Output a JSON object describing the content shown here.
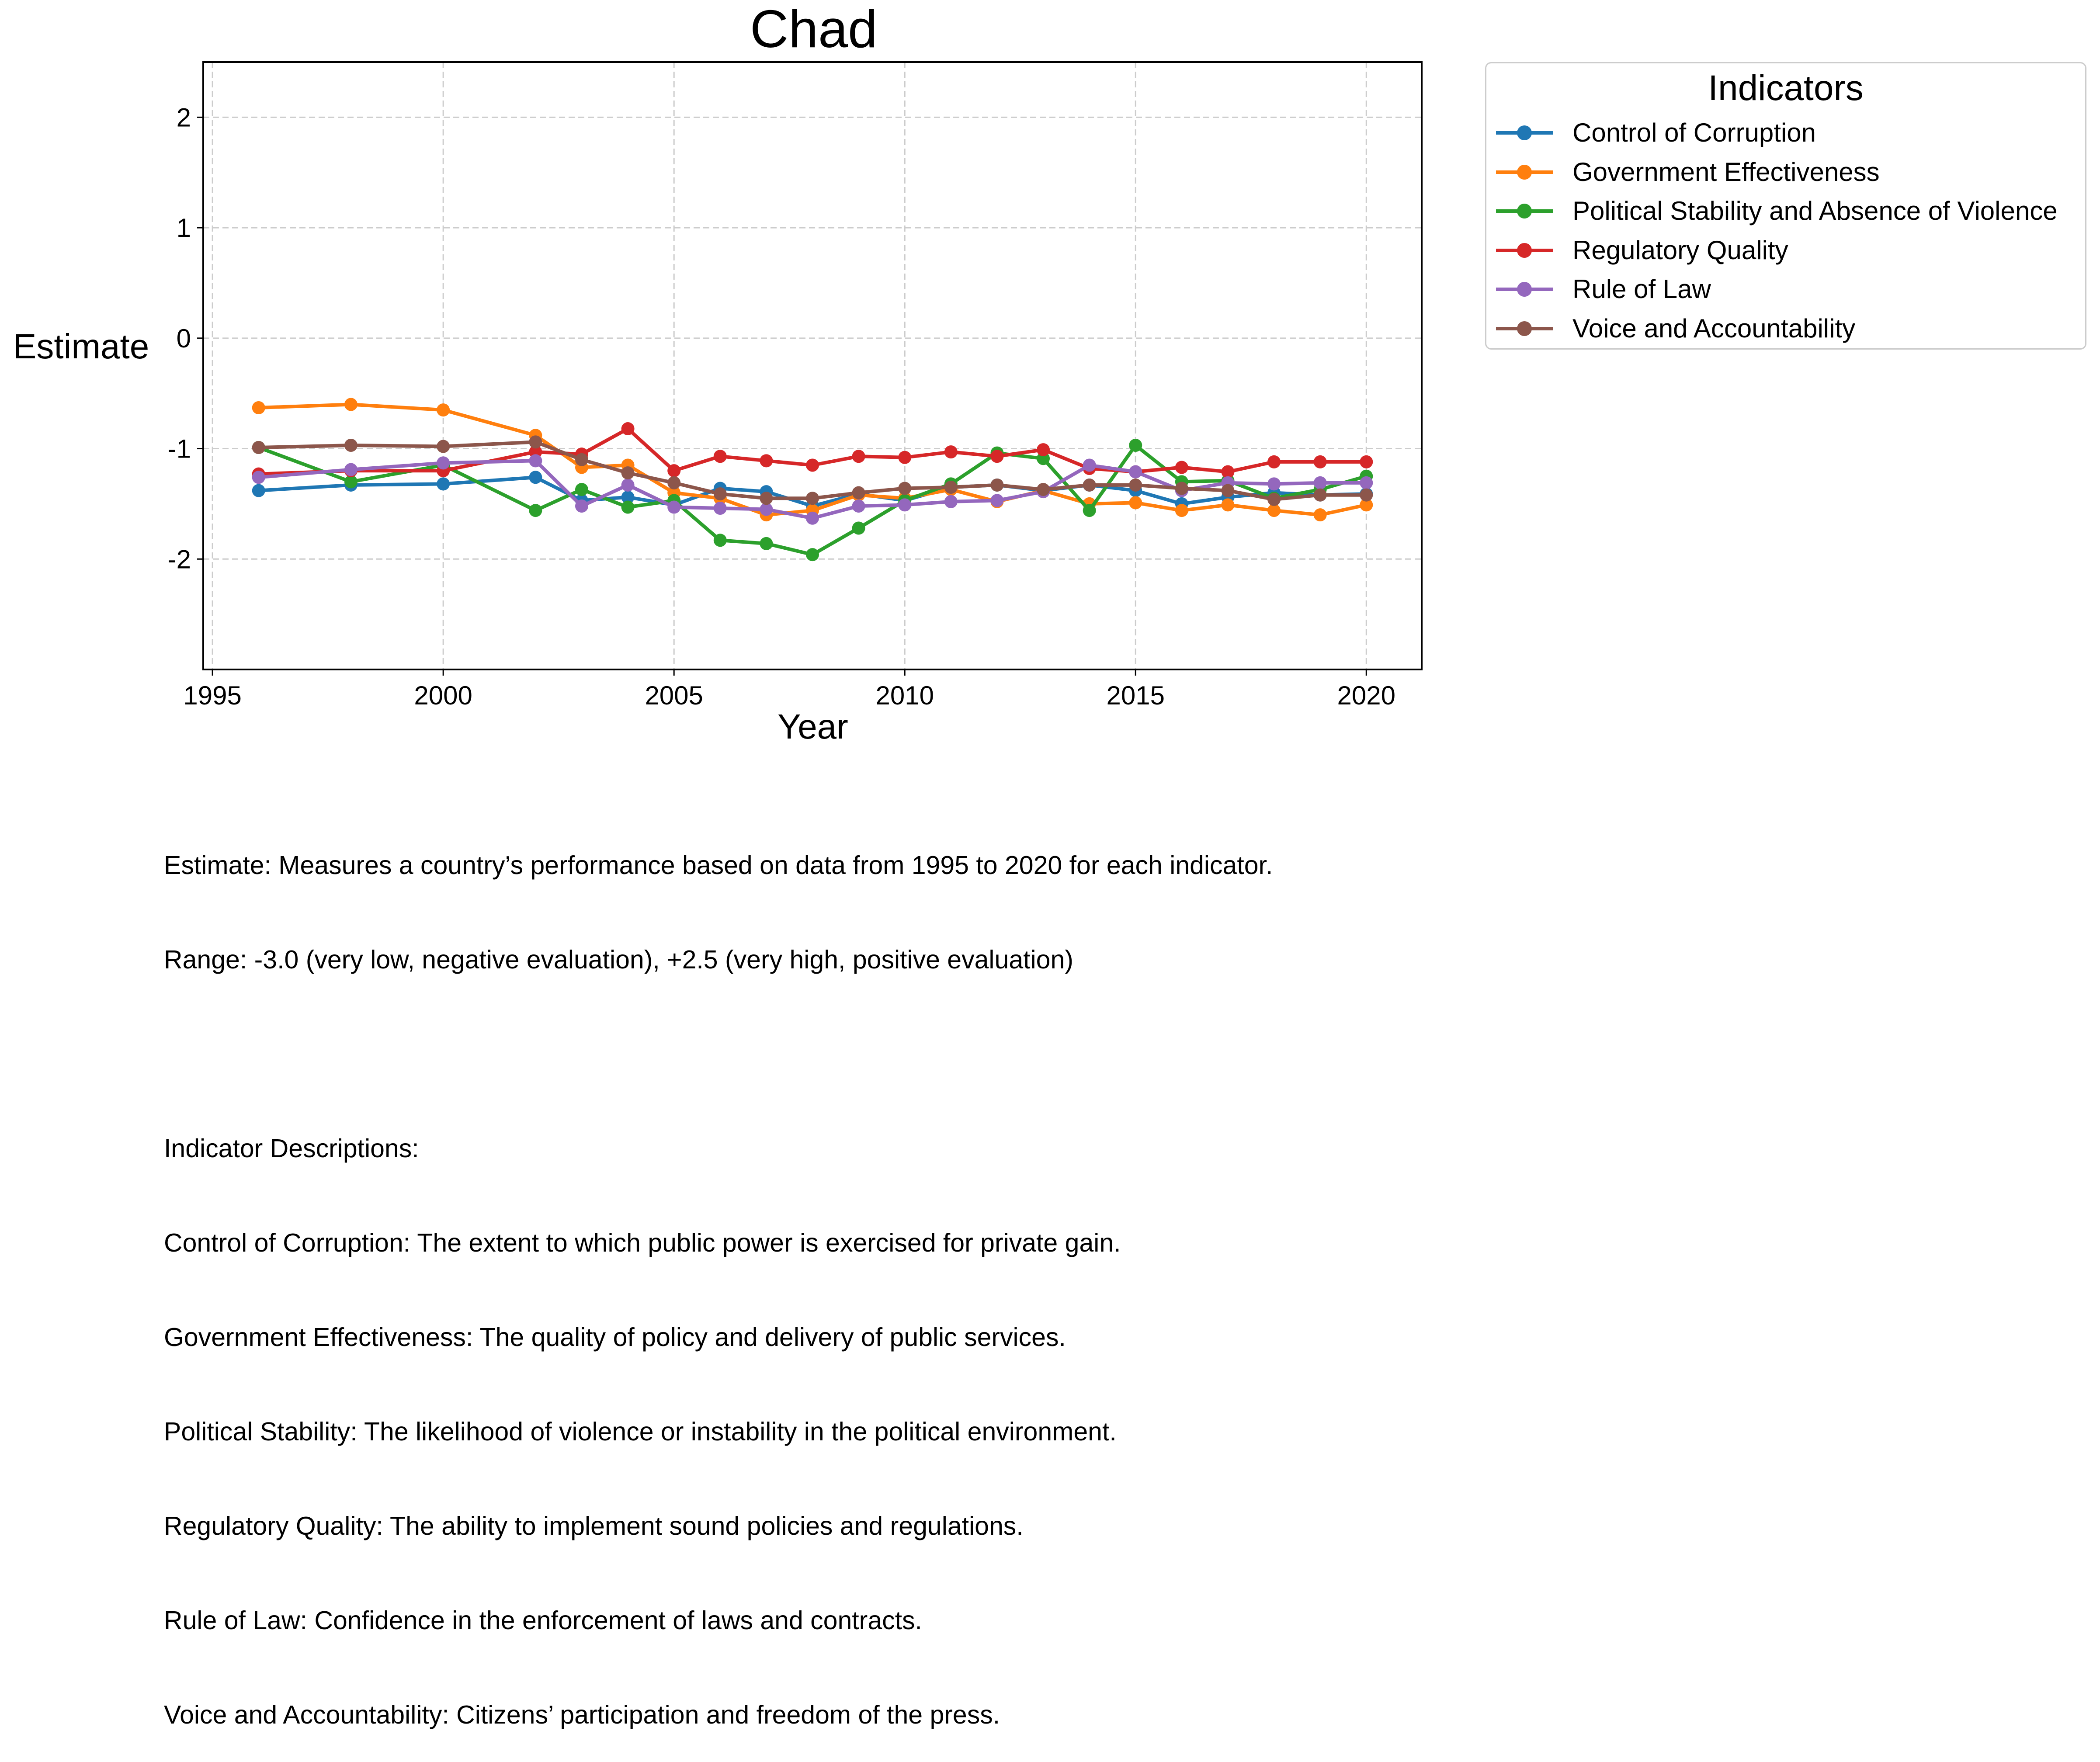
{
  "chart_data": {
    "type": "line",
    "title": "Chad",
    "xlabel": "Year",
    "ylabel": "Estimate",
    "xlim": [
      1994.8,
      2021.2
    ],
    "ylim": [
      -3.0,
      2.5
    ],
    "xticks": [
      1995,
      2000,
      2005,
      2010,
      2015,
      2020
    ],
    "yticks": [
      2,
      1,
      0,
      -1,
      -2
    ],
    "grid": true,
    "legend_title": "Indicators",
    "legend_position": "outside-right",
    "x": [
      1996,
      1998,
      2000,
      2002,
      2003,
      2004,
      2005,
      2006,
      2007,
      2008,
      2009,
      2010,
      2011,
      2012,
      2013,
      2014,
      2015,
      2016,
      2017,
      2018,
      2019,
      2020
    ],
    "series": [
      {
        "name": "Control of Corruption",
        "color": "#1f77b4",
        "values": [
          -1.38,
          -1.33,
          -1.32,
          -1.26,
          -1.47,
          -1.44,
          -1.51,
          -1.36,
          -1.39,
          -1.52,
          -1.41,
          -1.47,
          -1.35,
          -1.33,
          -1.38,
          -1.33,
          -1.38,
          -1.5,
          -1.44,
          -1.4,
          -1.42,
          -1.41
        ]
      },
      {
        "name": "Government Effectiveness",
        "color": "#ff7f0e",
        "values": [
          -0.63,
          -0.6,
          -0.65,
          -0.88,
          -1.17,
          -1.15,
          -1.4,
          -1.45,
          -1.6,
          -1.56,
          -1.42,
          -1.45,
          -1.37,
          -1.48,
          -1.38,
          -1.5,
          -1.49,
          -1.56,
          -1.51,
          -1.56,
          -1.6,
          -1.51
        ]
      },
      {
        "name": "Political Stability and Absence of Violence",
        "color": "#2ca02c",
        "values": [
          -0.99,
          -1.3,
          -1.15,
          -1.56,
          -1.37,
          -1.53,
          -1.47,
          -1.83,
          -1.86,
          -1.96,
          -1.72,
          -1.47,
          -1.32,
          -1.04,
          -1.09,
          -1.56,
          -0.97,
          -1.3,
          -1.29,
          -1.45,
          -1.37,
          -1.25
        ]
      },
      {
        "name": "Regulatory Quality",
        "color": "#d62728",
        "values": [
          -1.23,
          -1.2,
          -1.2,
          -1.03,
          -1.05,
          -0.82,
          -1.2,
          -1.07,
          -1.11,
          -1.15,
          -1.07,
          -1.08,
          -1.03,
          -1.07,
          -1.01,
          -1.18,
          -1.21,
          -1.17,
          -1.21,
          -1.12,
          -1.12,
          -1.12
        ]
      },
      {
        "name": "Rule of Law",
        "color": "#9467bd",
        "values": [
          -1.26,
          -1.19,
          -1.13,
          -1.11,
          -1.52,
          -1.33,
          -1.53,
          -1.54,
          -1.55,
          -1.63,
          -1.52,
          -1.51,
          -1.48,
          -1.47,
          -1.39,
          -1.15,
          -1.21,
          -1.38,
          -1.31,
          -1.32,
          -1.31,
          -1.31
        ]
      },
      {
        "name": "Voice and Accountability",
        "color": "#8c564b",
        "values": [
          -0.99,
          -0.97,
          -0.98,
          -0.94,
          -1.1,
          -1.22,
          -1.31,
          -1.41,
          -1.45,
          -1.45,
          -1.4,
          -1.36,
          -1.35,
          -1.33,
          -1.37,
          -1.33,
          -1.33,
          -1.36,
          -1.38,
          -1.46,
          -1.42,
          -1.42
        ]
      }
    ]
  },
  "notes": {
    "line1": "Estimate: Measures a country’s performance based on data from 1995 to 2020 for each indicator.",
    "line2": "Range: -3.0 (very low, negative evaluation), +2.5 (very high, positive evaluation)",
    "line3": "",
    "line4": "Indicator Descriptions:",
    "line5": "Control of Corruption: The extent to which public power is exercised for private gain.",
    "line6": "Government Effectiveness: The quality of policy and delivery of public services.",
    "line7": "Political Stability: The likelihood of violence or instability in the political environment.",
    "line8": "Regulatory Quality: The ability to implement sound policies and regulations.",
    "line9": "Rule of Law: Confidence in the enforcement of laws and contracts.",
    "line10": "Voice and Accountability: Citizens’ participation and freedom of the press."
  }
}
